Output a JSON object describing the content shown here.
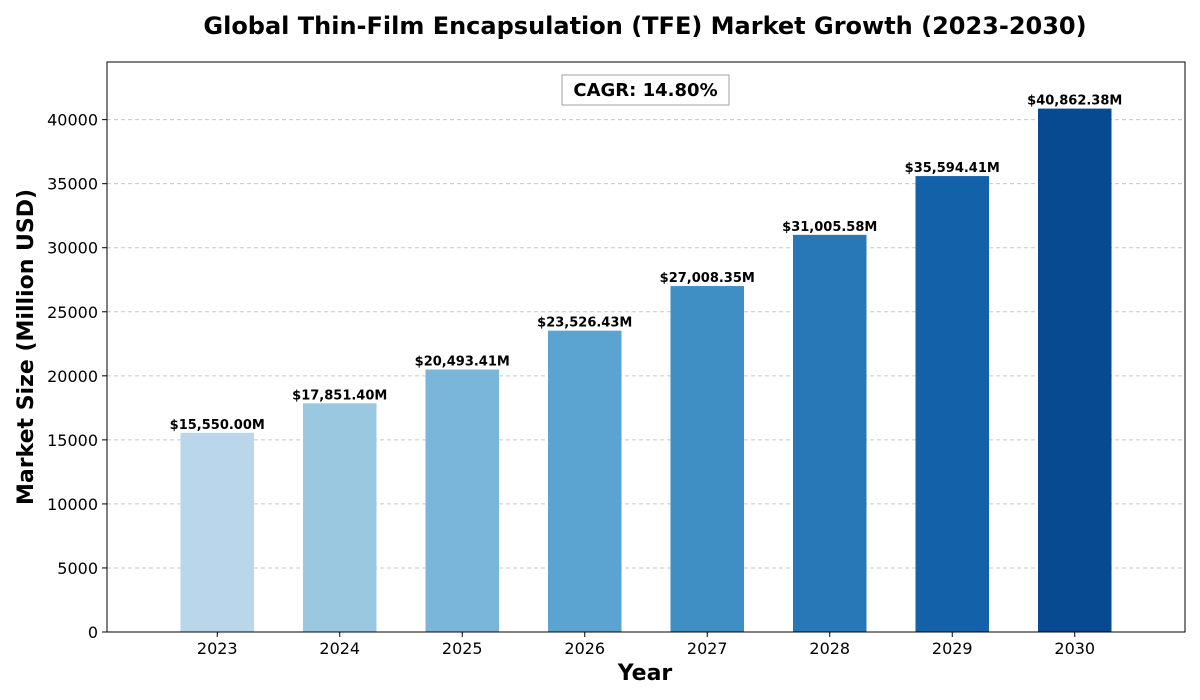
{
  "chart_data": {
    "type": "bar",
    "title": "Global Thin-Film Encapsulation (TFE) Market Growth (2023-2030)",
    "xlabel": "Year",
    "ylabel": "Market Size (Million USD)",
    "categories": [
      "2023",
      "2024",
      "2025",
      "2026",
      "2027",
      "2028",
      "2029",
      "2030"
    ],
    "values": [
      15550.0,
      17851.4,
      20493.41,
      23526.43,
      27008.35,
      31005.58,
      35594.41,
      40862.38
    ],
    "data_labels": [
      "$15,550.00M",
      "$17,851.40M",
      "$20,493.41M",
      "$23,526.43M",
      "$27,008.35M",
      "$31,005.58M",
      "$35,594.41M",
      "$40,862.38M"
    ],
    "ylim": [
      0,
      44500
    ],
    "yticks": [
      0,
      5000,
      10000,
      15000,
      20000,
      25000,
      30000,
      35000,
      40000
    ],
    "ytick_labels": [
      "0",
      "5000",
      "10000",
      "15000",
      "20000",
      "25000",
      "30000",
      "35000",
      "40000"
    ],
    "grid": "horizontal dashed",
    "bar_colors": [
      "#bad6eb",
      "#9ac8e0",
      "#7ab6d9",
      "#5ba3d0",
      "#3f8fc5",
      "#2878b8",
      "#1361a9",
      "#084a91"
    ],
    "annotation": "CAGR: 14.80%"
  }
}
